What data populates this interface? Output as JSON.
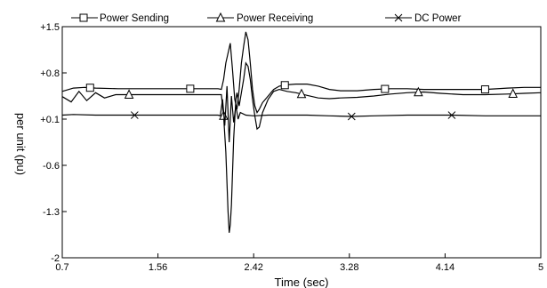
{
  "chart_data": {
    "type": "line",
    "xlabel": "Time (sec)",
    "ylabel": "per unit  (pu)",
    "xlim": [
      0.7,
      5
    ],
    "ylim": [
      -2,
      1.5
    ],
    "xticks": [
      "0.7",
      "1.56",
      "2.42",
      "3.28",
      "4.14",
      "5"
    ],
    "yticks": [
      "+1.5",
      "+0.8",
      "+0.1",
      "-0.6",
      "-1.3",
      "-2"
    ],
    "legend_position": "top",
    "grid": false,
    "series": [
      {
        "name": "Power Sending",
        "marker": "square",
        "points": [
          [
            0.7,
            0.52
          ],
          [
            0.8,
            0.57
          ],
          [
            0.9,
            0.58
          ],
          [
            1.0,
            0.57
          ],
          [
            1.2,
            0.56
          ],
          [
            1.5,
            0.56
          ],
          [
            1.8,
            0.56
          ],
          [
            2.1,
            0.56
          ],
          [
            2.13,
            0.55
          ],
          [
            2.15,
            0.7
          ],
          [
            2.17,
            0.95
          ],
          [
            2.19,
            1.1
          ],
          [
            2.21,
            1.25
          ],
          [
            2.23,
            0.85
          ],
          [
            2.25,
            0.4
          ],
          [
            2.27,
            0.25
          ],
          [
            2.29,
            0.55
          ],
          [
            2.31,
            0.95
          ],
          [
            2.33,
            1.2
          ],
          [
            2.35,
            1.42
          ],
          [
            2.37,
            1.3
          ],
          [
            2.39,
            0.95
          ],
          [
            2.41,
            0.55
          ],
          [
            2.43,
            0.3
          ],
          [
            2.45,
            0.2
          ],
          [
            2.47,
            0.25
          ],
          [
            2.5,
            0.35
          ],
          [
            2.55,
            0.45
          ],
          [
            2.6,
            0.55
          ],
          [
            2.65,
            0.6
          ],
          [
            2.72,
            0.62
          ],
          [
            2.8,
            0.63
          ],
          [
            2.9,
            0.63
          ],
          [
            3.0,
            0.6
          ],
          [
            3.1,
            0.55
          ],
          [
            3.2,
            0.53
          ],
          [
            3.35,
            0.53
          ],
          [
            3.5,
            0.55
          ],
          [
            3.65,
            0.56
          ],
          [
            3.8,
            0.56
          ],
          [
            3.95,
            0.55
          ],
          [
            4.1,
            0.55
          ],
          [
            4.3,
            0.55
          ],
          [
            4.5,
            0.55
          ],
          [
            4.7,
            0.57
          ],
          [
            4.85,
            0.58
          ],
          [
            5.0,
            0.58
          ]
        ]
      },
      {
        "name": "Power Receiving",
        "marker": "triangle",
        "points": [
          [
            0.7,
            0.44
          ],
          [
            0.78,
            0.36
          ],
          [
            0.85,
            0.52
          ],
          [
            0.92,
            0.38
          ],
          [
            1.0,
            0.5
          ],
          [
            1.08,
            0.42
          ],
          [
            1.18,
            0.47
          ],
          [
            1.3,
            0.47
          ],
          [
            1.5,
            0.47
          ],
          [
            1.8,
            0.47
          ],
          [
            2.1,
            0.47
          ],
          [
            2.13,
            0.47
          ],
          [
            2.15,
            0.15
          ],
          [
            2.17,
            -0.4
          ],
          [
            2.19,
            -1.3
          ],
          [
            2.2,
            -1.62
          ],
          [
            2.21,
            -1.5
          ],
          [
            2.22,
            -1.2
          ],
          [
            2.24,
            -0.2
          ],
          [
            2.26,
            0.4
          ],
          [
            2.27,
            0.5
          ],
          [
            2.29,
            0.3
          ],
          [
            2.31,
            0.5
          ],
          [
            2.33,
            0.7
          ],
          [
            2.35,
            0.95
          ],
          [
            2.37,
            0.9
          ],
          [
            2.39,
            0.7
          ],
          [
            2.41,
            0.4
          ],
          [
            2.43,
            0.15
          ],
          [
            2.45,
            -0.05
          ],
          [
            2.47,
            -0.02
          ],
          [
            2.5,
            0.2
          ],
          [
            2.55,
            0.4
          ],
          [
            2.6,
            0.52
          ],
          [
            2.65,
            0.55
          ],
          [
            2.72,
            0.52
          ],
          [
            2.8,
            0.5
          ],
          [
            2.9,
            0.46
          ],
          [
            3.0,
            0.42
          ],
          [
            3.1,
            0.41
          ],
          [
            3.2,
            0.42
          ],
          [
            3.35,
            0.43
          ],
          [
            3.5,
            0.45
          ],
          [
            3.65,
            0.48
          ],
          [
            3.8,
            0.5
          ],
          [
            3.95,
            0.51
          ],
          [
            4.1,
            0.49
          ],
          [
            4.3,
            0.47
          ],
          [
            4.5,
            0.47
          ],
          [
            4.7,
            0.48
          ],
          [
            4.85,
            0.49
          ],
          [
            5.0,
            0.5
          ]
        ]
      },
      {
        "name": "DC Power",
        "marker": "x",
        "points": [
          [
            0.7,
            0.16
          ],
          [
            0.8,
            0.17
          ],
          [
            1.0,
            0.16
          ],
          [
            1.3,
            0.16
          ],
          [
            1.7,
            0.16
          ],
          [
            2.1,
            0.16
          ],
          [
            2.12,
            0.15
          ],
          [
            2.14,
            0.4
          ],
          [
            2.16,
            0.0
          ],
          [
            2.18,
            0.6
          ],
          [
            2.2,
            -0.25
          ],
          [
            2.22,
            0.45
          ],
          [
            2.24,
            0.05
          ],
          [
            2.26,
            0.3
          ],
          [
            2.28,
            0.1
          ],
          [
            2.3,
            0.2
          ],
          [
            2.35,
            0.16
          ],
          [
            2.42,
            0.15
          ],
          [
            2.55,
            0.16
          ],
          [
            2.7,
            0.16
          ],
          [
            2.9,
            0.16
          ],
          [
            3.1,
            0.15
          ],
          [
            3.3,
            0.14
          ],
          [
            3.5,
            0.15
          ],
          [
            3.8,
            0.16
          ],
          [
            4.0,
            0.16
          ],
          [
            4.2,
            0.16
          ],
          [
            4.5,
            0.15
          ],
          [
            4.8,
            0.15
          ],
          [
            5.0,
            0.15
          ]
        ]
      }
    ]
  }
}
